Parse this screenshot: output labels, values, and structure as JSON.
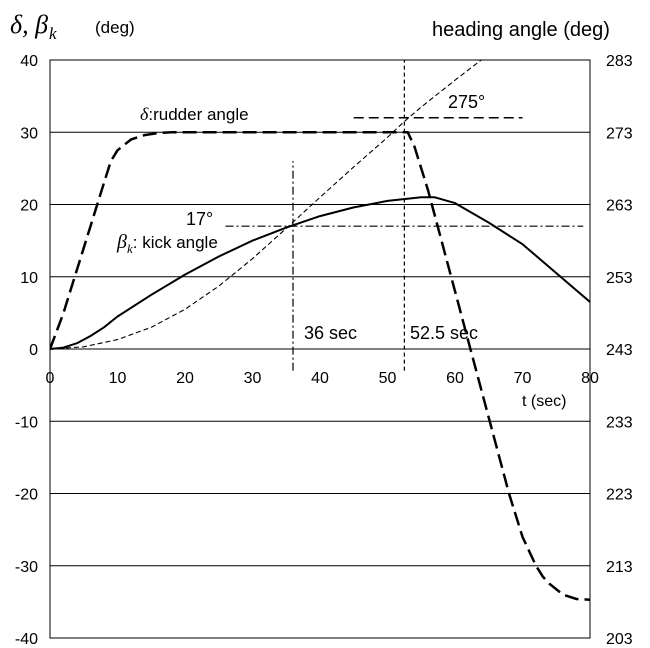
{
  "chart_data": {
    "type": "line",
    "title_left": "δ, β",
    "title_left_sub": "k",
    "title_left_unit": "(deg)",
    "title_right": "heading angle (deg)",
    "xlabel": "t (sec)",
    "xlim": [
      0,
      80
    ],
    "ylim": [
      -40,
      40
    ],
    "y2lim": [
      203,
      283
    ],
    "x_ticks": [
      "0",
      "10",
      "20",
      "30",
      "40",
      "50",
      "60",
      "70",
      "80"
    ],
    "y_ticks": [
      "40",
      "30",
      "20",
      "10",
      "0",
      "-10",
      "-20",
      "-30",
      "-40"
    ],
    "y2_ticks": [
      "283",
      "273",
      "263",
      "253",
      "243",
      "233",
      "223",
      "213",
      "203"
    ],
    "grid": "horizontal",
    "series": [
      {
        "name": "rudder angle",
        "axis": "left",
        "style": "dashed-bold",
        "x": [
          0,
          2,
          4,
          6,
          8,
          9,
          10,
          12,
          14,
          16,
          18,
          20,
          30,
          40,
          50,
          53,
          54,
          56,
          58,
          60,
          62,
          64,
          66,
          68,
          70,
          72,
          73,
          74,
          76,
          78,
          80
        ],
        "y": [
          0,
          5,
          11,
          17,
          23,
          26,
          27.5,
          29,
          29.6,
          29.9,
          30,
          30,
          30,
          30,
          30,
          30,
          28,
          22,
          15,
          8,
          1,
          -6,
          -13,
          -20,
          -26,
          -30,
          -31.5,
          -32.5,
          -34,
          -34.6,
          -34.7
        ]
      },
      {
        "name": "kick angle",
        "axis": "left",
        "style": "solid",
        "x": [
          0,
          2,
          4,
          6,
          8,
          10,
          15,
          20,
          25,
          30,
          35,
          40,
          45,
          50,
          55,
          57,
          60,
          65,
          70,
          75,
          80
        ],
        "y": [
          0,
          0.2,
          0.8,
          1.8,
          3,
          4.5,
          7.5,
          10.3,
          12.8,
          15,
          16.8,
          18.4,
          19.6,
          20.5,
          21,
          21,
          20.2,
          17.5,
          14.5,
          10.5,
          6.5
        ]
      },
      {
        "name": "heading angle",
        "axis": "right",
        "style": "dashed-thin",
        "x": [
          0,
          5,
          10,
          15,
          20,
          25,
          30,
          35,
          40,
          45,
          50,
          52.5,
          55,
          60,
          65,
          68.5
        ],
        "y": [
          243,
          243.3,
          244.3,
          246,
          248.5,
          251.7,
          255.5,
          259.7,
          264,
          268.2,
          272.3,
          274.5,
          276.5,
          280.2,
          283.8,
          286
        ]
      }
    ],
    "annotations": {
      "rudder_delta": "δ",
      "rudder_label": ":rudder angle",
      "kick_beta": "β",
      "kick_sub": "k",
      "kick_label": ": kick angle",
      "deg17": "17°",
      "deg275": "275°",
      "t36": "36 sec",
      "t52": "52.5 sec"
    },
    "reference_lines": [
      {
        "type": "vertical",
        "x": 36,
        "y_from": -3,
        "y_to": 26
      },
      {
        "type": "vertical",
        "x": 52.5,
        "y_from": -3,
        "y_to": 40
      },
      {
        "type": "horizontal",
        "axis": "left",
        "y": 17,
        "x_from": 26,
        "x_to": 79
      },
      {
        "type": "horizontal",
        "axis": "right",
        "y": 275,
        "x_from": 45,
        "x_to": 70
      }
    ]
  }
}
